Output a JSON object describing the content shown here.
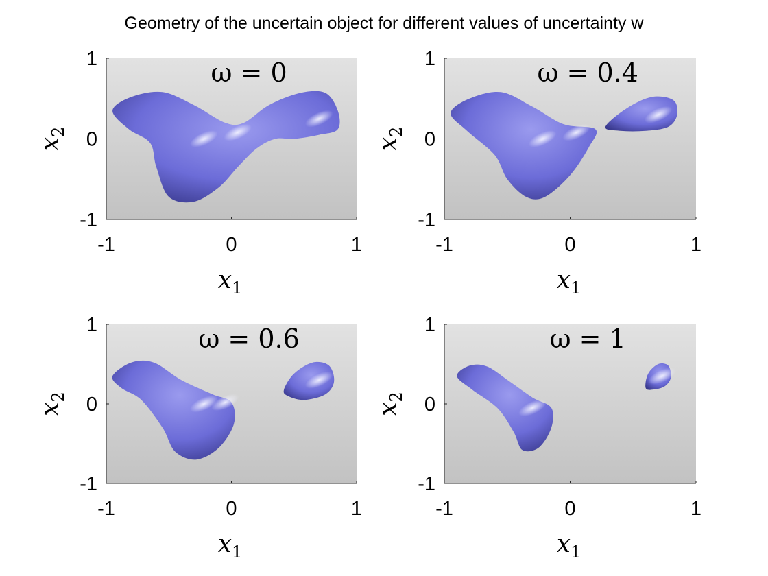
{
  "figure": {
    "title": "Geometry of the uncertain object for different values of uncertainty w"
  },
  "colors": {
    "blob": "#6c6cd8",
    "blob_highlight": "#f2f2ff",
    "blob_shadow": "#3a3a8e",
    "background_top": "#e2e2e2",
    "background_bottom": "#c2c2c2"
  },
  "chart_data": [
    {
      "type": "surface",
      "annotation": "ω = 0",
      "xlabel_main": "x",
      "xlabel_sub": "1",
      "ylabel_main": "x",
      "ylabel_sub": "2",
      "xlim": [
        -1,
        1
      ],
      "ylim": [
        -1,
        1
      ],
      "xticks": [
        "-1",
        "0",
        "1"
      ],
      "yticks": [
        "-1",
        "0",
        "1"
      ],
      "components": [
        {
          "name": "main",
          "outline": [
            [
              -0.95,
              0.35
            ],
            [
              -0.8,
              0.52
            ],
            [
              -0.55,
              0.58
            ],
            [
              -0.3,
              0.42
            ],
            [
              -0.05,
              0.2
            ],
            [
              0.1,
              0.2
            ],
            [
              0.3,
              0.42
            ],
            [
              0.55,
              0.57
            ],
            [
              0.75,
              0.57
            ],
            [
              0.85,
              0.35
            ],
            [
              0.85,
              0.12
            ],
            [
              0.7,
              0.05
            ],
            [
              0.5,
              0.0
            ],
            [
              0.35,
              0.0
            ],
            [
              0.2,
              -0.12
            ],
            [
              0.05,
              -0.35
            ],
            [
              -0.1,
              -0.6
            ],
            [
              -0.3,
              -0.78
            ],
            [
              -0.5,
              -0.72
            ],
            [
              -0.6,
              -0.35
            ],
            [
              -0.65,
              -0.05
            ],
            [
              -0.82,
              0.12
            ]
          ],
          "highlight": [
            [
              -0.22,
              0.0
            ],
            [
              0.05,
              0.08
            ],
            [
              0.7,
              0.25
            ]
          ]
        }
      ]
    },
    {
      "type": "surface",
      "annotation": "ω = 0.4",
      "xlabel_main": "x",
      "xlabel_sub": "1",
      "ylabel_main": "x",
      "ylabel_sub": "2",
      "xlim": [
        -1,
        1
      ],
      "ylim": [
        -1,
        1
      ],
      "xticks": [
        "-1",
        "0",
        "1"
      ],
      "yticks": [
        "-1",
        "0",
        "1"
      ],
      "components": [
        {
          "name": "main",
          "outline": [
            [
              -0.95,
              0.32
            ],
            [
              -0.8,
              0.5
            ],
            [
              -0.55,
              0.58
            ],
            [
              -0.3,
              0.4
            ],
            [
              -0.05,
              0.18
            ],
            [
              0.2,
              0.12
            ],
            [
              0.15,
              -0.1
            ],
            [
              0.0,
              -0.45
            ],
            [
              -0.2,
              -0.72
            ],
            [
              -0.35,
              -0.72
            ],
            [
              -0.5,
              -0.5
            ],
            [
              -0.6,
              -0.2
            ],
            [
              -0.82,
              0.1
            ]
          ],
          "highlight": [
            [
              -0.22,
              0.0
            ],
            [
              0.05,
              0.08
            ]
          ]
        },
        {
          "name": "right-lobe",
          "outline": [
            [
              0.28,
              0.15
            ],
            [
              0.45,
              0.38
            ],
            [
              0.65,
              0.52
            ],
            [
              0.82,
              0.48
            ],
            [
              0.85,
              0.3
            ],
            [
              0.78,
              0.15
            ],
            [
              0.6,
              0.1
            ],
            [
              0.4,
              0.1
            ]
          ],
          "highlight": [
            [
              0.7,
              0.3
            ]
          ]
        }
      ]
    },
    {
      "type": "surface",
      "annotation": "ω = 0.6",
      "xlabel_main": "x",
      "xlabel_sub": "1",
      "ylabel_main": "x",
      "ylabel_sub": "2",
      "xlim": [
        -1,
        1
      ],
      "ylim": [
        -1,
        1
      ],
      "xticks": [
        "-1",
        "0",
        "1"
      ],
      "yticks": [
        "-1",
        "0",
        "1"
      ],
      "components": [
        {
          "name": "main",
          "outline": [
            [
              -0.95,
              0.35
            ],
            [
              -0.8,
              0.52
            ],
            [
              -0.62,
              0.52
            ],
            [
              -0.4,
              0.3
            ],
            [
              -0.15,
              0.12
            ],
            [
              0.0,
              0.02
            ],
            [
              0.02,
              -0.25
            ],
            [
              -0.1,
              -0.55
            ],
            [
              -0.28,
              -0.7
            ],
            [
              -0.45,
              -0.6
            ],
            [
              -0.55,
              -0.3
            ],
            [
              -0.72,
              0.05
            ],
            [
              -0.88,
              0.2
            ]
          ],
          "highlight": [
            [
              -0.22,
              0.0
            ],
            [
              -0.05,
              0.02
            ]
          ]
        },
        {
          "name": "right-lobe",
          "outline": [
            [
              0.42,
              0.18
            ],
            [
              0.5,
              0.38
            ],
            [
              0.65,
              0.52
            ],
            [
              0.78,
              0.48
            ],
            [
              0.82,
              0.28
            ],
            [
              0.75,
              0.12
            ],
            [
              0.58,
              0.05
            ],
            [
              0.45,
              0.1
            ]
          ],
          "highlight": [
            [
              0.7,
              0.3
            ]
          ]
        }
      ]
    },
    {
      "type": "surface",
      "annotation": "ω = 1",
      "xlabel_main": "x",
      "xlabel_sub": "1",
      "ylabel_main": "x",
      "ylabel_sub": "2",
      "xlim": [
        -1,
        1
      ],
      "ylim": [
        -1,
        1
      ],
      "xticks": [
        "-1",
        "0",
        "1"
      ],
      "yticks": [
        "-1",
        "0",
        "1"
      ],
      "components": [
        {
          "name": "main",
          "outline": [
            [
              -0.9,
              0.35
            ],
            [
              -0.8,
              0.48
            ],
            [
              -0.66,
              0.47
            ],
            [
              -0.48,
              0.28
            ],
            [
              -0.3,
              0.08
            ],
            [
              -0.15,
              -0.05
            ],
            [
              -0.15,
              -0.3
            ],
            [
              -0.25,
              -0.55
            ],
            [
              -0.38,
              -0.58
            ],
            [
              -0.45,
              -0.35
            ],
            [
              -0.58,
              -0.05
            ],
            [
              -0.78,
              0.18
            ]
          ],
          "highlight": [
            [
              -0.3,
              -0.05
            ]
          ]
        },
        {
          "name": "right-lobe",
          "outline": [
            [
              0.6,
              0.2
            ],
            [
              0.62,
              0.38
            ],
            [
              0.7,
              0.5
            ],
            [
              0.78,
              0.48
            ],
            [
              0.8,
              0.33
            ],
            [
              0.75,
              0.22
            ],
            [
              0.66,
              0.18
            ]
          ],
          "highlight": [
            [
              0.73,
              0.35
            ]
          ]
        }
      ]
    }
  ]
}
